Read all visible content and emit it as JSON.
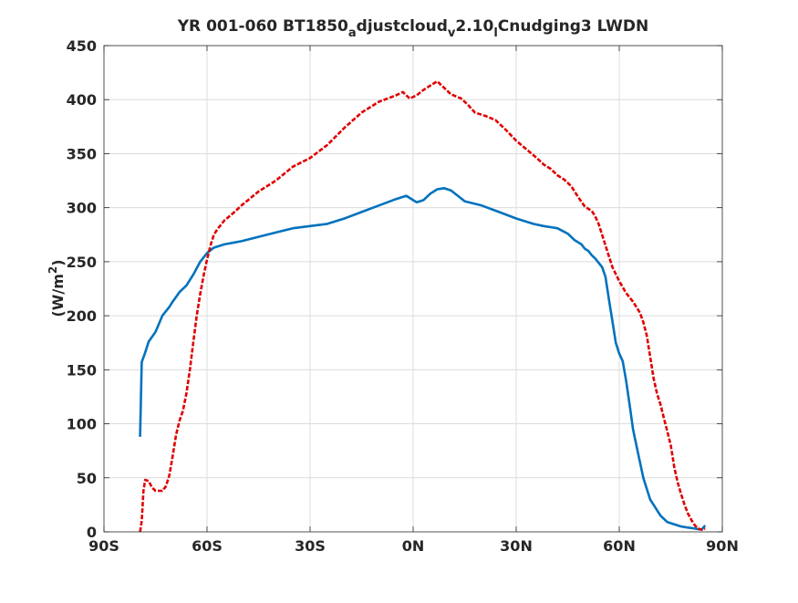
{
  "chart_data": {
    "type": "line",
    "title": "YR 001-060 BT1850",
    "title_parts": [
      {
        "text": "YR 001-060 BT1850",
        "sub": false
      },
      {
        "text": "a",
        "sub": true
      },
      {
        "text": "djustcloud",
        "sub": false
      },
      {
        "text": "v",
        "sub": true
      },
      {
        "text": "2.10",
        "sub": false
      },
      {
        "text": "l",
        "sub": true
      },
      {
        "text": "Cnudging3 LWDN",
        "sub": false
      }
    ],
    "xlabel": "",
    "ylabel": "(W/m",
    "ylabel_sup": "2",
    "ylabel_end": ")",
    "xlim": [
      -90,
      90
    ],
    "ylim": [
      0,
      450
    ],
    "xticks": [
      -90,
      -60,
      -30,
      0,
      30,
      60,
      90
    ],
    "xtick_labels": [
      "90S",
      "60S",
      "30S",
      "0N",
      "30N",
      "60N",
      "90N"
    ],
    "yticks": [
      0,
      50,
      100,
      150,
      200,
      250,
      300,
      350,
      400,
      450
    ],
    "ytick_labels": [
      "0",
      "50",
      "100",
      "150",
      "200",
      "250",
      "300",
      "350",
      "400",
      "450"
    ],
    "grid": true,
    "series": [
      {
        "color": "#0072BD",
        "style": "solid",
        "points": [
          [
            -79.5,
            88
          ],
          [
            -79,
            157
          ],
          [
            -78,
            166
          ],
          [
            -77,
            176
          ],
          [
            -75,
            185
          ],
          [
            -73,
            200
          ],
          [
            -71,
            208
          ],
          [
            -70,
            213
          ],
          [
            -68,
            222
          ],
          [
            -66,
            228
          ],
          [
            -64,
            238
          ],
          [
            -62,
            250
          ],
          [
            -60,
            258
          ],
          [
            -58,
            263
          ],
          [
            -55,
            266
          ],
          [
            -50,
            269
          ],
          [
            -45,
            273
          ],
          [
            -40,
            277
          ],
          [
            -35,
            281
          ],
          [
            -30,
            283
          ],
          [
            -25,
            285
          ],
          [
            -20,
            290
          ],
          [
            -15,
            296
          ],
          [
            -10,
            302
          ],
          [
            -5,
            308
          ],
          [
            -2,
            311
          ],
          [
            0,
            307
          ],
          [
            1,
            305
          ],
          [
            3,
            307
          ],
          [
            5,
            313
          ],
          [
            7,
            317
          ],
          [
            9,
            318
          ],
          [
            11,
            316
          ],
          [
            13,
            311
          ],
          [
            15,
            306
          ],
          [
            20,
            302
          ],
          [
            25,
            296
          ],
          [
            30,
            290
          ],
          [
            35,
            285
          ],
          [
            38,
            283
          ],
          [
            40,
            282
          ],
          [
            42,
            281
          ],
          [
            45,
            276
          ],
          [
            47,
            270
          ],
          [
            49,
            266
          ],
          [
            50,
            262
          ],
          [
            51,
            260
          ],
          [
            52,
            256
          ],
          [
            53,
            253
          ],
          [
            55,
            245
          ],
          [
            56,
            236
          ],
          [
            57,
            215
          ],
          [
            58,
            195
          ],
          [
            59,
            175
          ],
          [
            60,
            165
          ],
          [
            61,
            158
          ],
          [
            62,
            140
          ],
          [
            63,
            118
          ],
          [
            64,
            95
          ],
          [
            65,
            80
          ],
          [
            66,
            65
          ],
          [
            67,
            50
          ],
          [
            68,
            40
          ],
          [
            69,
            30
          ],
          [
            70,
            25
          ],
          [
            72,
            15
          ],
          [
            74,
            9
          ],
          [
            76,
            7
          ],
          [
            78,
            5
          ],
          [
            80,
            4
          ],
          [
            82,
            3
          ],
          [
            84,
            2
          ],
          [
            85,
            6
          ]
        ]
      },
      {
        "color": "#E00000",
        "style": "dashed",
        "points": [
          [
            -79.5,
            0
          ],
          [
            -79,
            10
          ],
          [
            -78.5,
            38
          ],
          [
            -78,
            48
          ],
          [
            -77,
            47
          ],
          [
            -76,
            41
          ],
          [
            -75,
            38
          ],
          [
            -73,
            38
          ],
          [
            -72,
            42
          ],
          [
            -71,
            52
          ],
          [
            -70,
            70
          ],
          [
            -69,
            90
          ],
          [
            -68,
            103
          ],
          [
            -67,
            112
          ],
          [
            -66,
            128
          ],
          [
            -65,
            150
          ],
          [
            -64,
            175
          ],
          [
            -63,
            200
          ],
          [
            -62,
            220
          ],
          [
            -61,
            237
          ],
          [
            -60,
            252
          ],
          [
            -59,
            265
          ],
          [
            -58,
            275
          ],
          [
            -57,
            280
          ],
          [
            -55,
            288
          ],
          [
            -52,
            296
          ],
          [
            -50,
            302
          ],
          [
            -45,
            315
          ],
          [
            -40,
            325
          ],
          [
            -35,
            338
          ],
          [
            -30,
            346
          ],
          [
            -25,
            358
          ],
          [
            -20,
            374
          ],
          [
            -15,
            388
          ],
          [
            -10,
            398
          ],
          [
            -5,
            404
          ],
          [
            -3,
            407
          ],
          [
            -1,
            401
          ],
          [
            1,
            404
          ],
          [
            3,
            409
          ],
          [
            5,
            413
          ],
          [
            7,
            417
          ],
          [
            9,
            411
          ],
          [
            11,
            405
          ],
          [
            14,
            401
          ],
          [
            16,
            395
          ],
          [
            18,
            388
          ],
          [
            21,
            385
          ],
          [
            24,
            381
          ],
          [
            27,
            372
          ],
          [
            30,
            362
          ],
          [
            33,
            354
          ],
          [
            36,
            346
          ],
          [
            38,
            340
          ],
          [
            40,
            336
          ],
          [
            42,
            330
          ],
          [
            44,
            326
          ],
          [
            46,
            320
          ],
          [
            48,
            310
          ],
          [
            50,
            301
          ],
          [
            52,
            297
          ],
          [
            53,
            292
          ],
          [
            54,
            285
          ],
          [
            56,
            265
          ],
          [
            58,
            245
          ],
          [
            60,
            232
          ],
          [
            62,
            221
          ],
          [
            64,
            213
          ],
          [
            66,
            203
          ],
          [
            67,
            194
          ],
          [
            68,
            182
          ],
          [
            69,
            162
          ],
          [
            70,
            142
          ],
          [
            71,
            128
          ],
          [
            72,
            118
          ],
          [
            73,
            105
          ],
          [
            74,
            93
          ],
          [
            75,
            80
          ],
          [
            76,
            60
          ],
          [
            77,
            46
          ],
          [
            78,
            35
          ],
          [
            79,
            25
          ],
          [
            80,
            17
          ],
          [
            81,
            11
          ],
          [
            82,
            6
          ],
          [
            83,
            3
          ],
          [
            84,
            2
          ],
          [
            85,
            3
          ]
        ]
      }
    ]
  }
}
